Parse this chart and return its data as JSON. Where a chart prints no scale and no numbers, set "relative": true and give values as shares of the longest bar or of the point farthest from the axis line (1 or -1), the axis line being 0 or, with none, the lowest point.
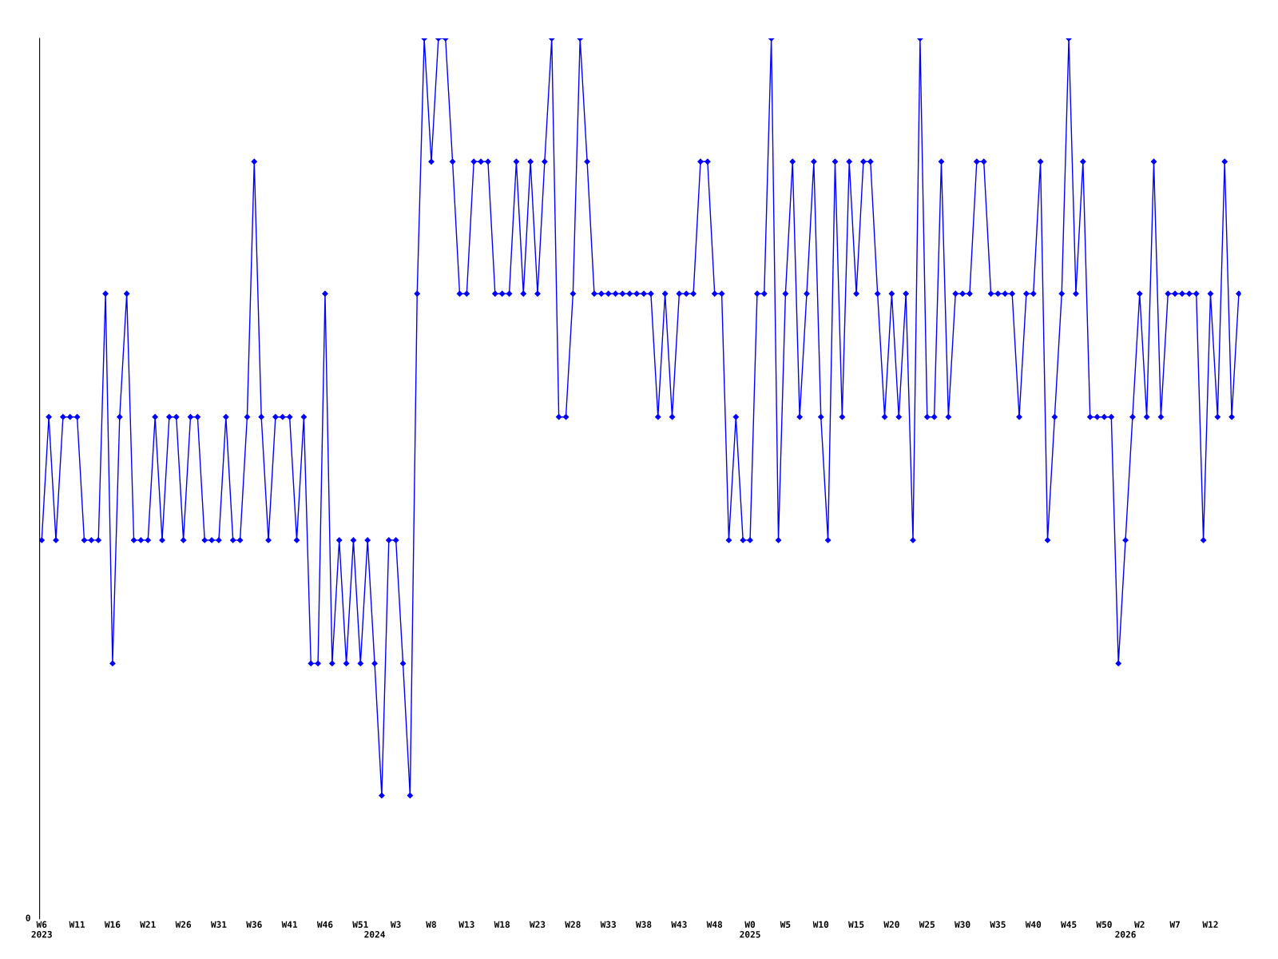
{
  "chart_data": {
    "type": "line",
    "relative": true,
    "marker": "diamond",
    "line_style": "solid",
    "grid": false,
    "legend": false,
    "annotations": [
      "0"
    ],
    "categories": [
      "W6\n2023",
      null,
      null,
      null,
      null,
      "W11",
      null,
      null,
      null,
      null,
      "W16",
      null,
      null,
      null,
      null,
      "W21",
      null,
      null,
      null,
      null,
      "W26",
      null,
      null,
      null,
      null,
      "W31",
      null,
      null,
      null,
      null,
      "W36",
      null,
      null,
      null,
      null,
      "W41",
      null,
      null,
      null,
      null,
      "W46",
      null,
      null,
      null,
      null,
      "W51",
      null,
      "\n2024",
      null,
      null,
      "W3",
      null,
      null,
      null,
      null,
      "W8",
      null,
      null,
      null,
      null,
      "W13",
      null,
      null,
      null,
      null,
      "W18",
      null,
      null,
      null,
      null,
      "W23",
      null,
      null,
      null,
      null,
      "W28",
      null,
      null,
      null,
      null,
      "W33",
      null,
      null,
      null,
      null,
      "W38",
      null,
      null,
      null,
      null,
      "W43",
      null,
      null,
      null,
      null,
      "W48",
      null,
      null,
      null,
      null,
      "W0\n2025",
      null,
      null,
      null,
      null,
      "W5",
      null,
      null,
      null,
      null,
      "W10",
      null,
      null,
      null,
      null,
      "W15",
      null,
      null,
      null,
      null,
      "W20",
      null,
      null,
      null,
      null,
      "W25",
      null,
      null,
      null,
      null,
      "W30",
      null,
      null,
      null,
      null,
      "W35",
      null,
      null,
      null,
      null,
      "W40",
      null,
      null,
      null,
      null,
      "W45",
      null,
      null,
      null,
      null,
      "W50",
      null,
      null,
      "\n2026",
      null,
      "W2",
      null,
      null,
      null,
      null,
      "W7",
      null,
      null,
      null,
      null,
      "W12",
      null,
      null,
      null,
      null
    ],
    "series": [
      {
        "color": "#0000ff",
        "values": [
          0.43,
          0.57,
          0.43,
          0.57,
          0.57,
          0.57,
          0.43,
          0.43,
          0.43,
          0.71,
          0.29,
          0.57,
          0.71,
          0.43,
          0.43,
          0.43,
          0.57,
          0.43,
          0.57,
          0.57,
          0.43,
          0.57,
          0.57,
          0.43,
          0.43,
          0.43,
          0.57,
          0.43,
          0.43,
          0.57,
          0.86,
          0.57,
          0.43,
          0.57,
          0.57,
          0.57,
          0.43,
          0.57,
          0.29,
          0.29,
          0.71,
          0.29,
          0.43,
          0.29,
          0.43,
          0.29,
          0.43,
          0.29,
          0.14,
          0.43,
          0.43,
          0.29,
          0.14,
          0.71,
          1,
          0.86,
          1,
          1,
          0.86,
          0.71,
          0.71,
          0.86,
          0.86,
          0.86,
          0.71,
          0.71,
          0.71,
          0.86,
          0.71,
          0.86,
          0.71,
          0.86,
          1,
          0.57,
          0.57,
          0.71,
          1,
          0.86,
          0.71,
          0.71,
          0.71,
          0.71,
          0.71,
          0.71,
          0.71,
          0.71,
          0.71,
          0.57,
          0.71,
          0.57,
          0.71,
          0.71,
          0.71,
          0.86,
          0.86,
          0.71,
          0.71,
          0.43,
          0.57,
          0.43,
          0.43,
          0.71,
          0.71,
          1,
          0.43,
          0.71,
          0.86,
          0.57,
          0.71,
          0.86,
          0.57,
          0.43,
          0.86,
          0.57,
          0.86,
          0.71,
          0.86,
          0.86,
          0.71,
          0.57,
          0.71,
          0.57,
          0.71,
          0.43,
          1,
          0.57,
          0.57,
          0.86,
          0.57,
          0.71,
          0.71,
          0.71,
          0.86,
          0.86,
          0.71,
          0.71,
          0.71,
          0.71,
          0.57,
          0.71,
          0.71,
          0.86,
          0.43,
          0.57,
          0.71,
          1,
          0.71,
          0.86,
          0.57,
          0.57,
          0.57,
          0.57,
          0.29,
          0.43,
          0.57,
          0.71,
          0.57,
          0.86,
          0.57,
          0.71,
          0.71,
          0.71,
          0.71,
          0.71,
          0.43,
          0.71,
          0.57,
          0.86,
          0.57,
          0.71
        ]
      }
    ]
  }
}
